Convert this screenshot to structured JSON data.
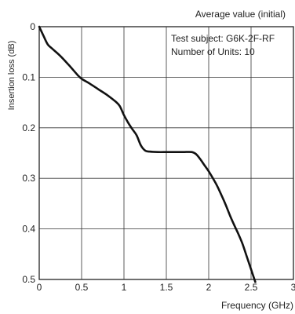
{
  "chart_data": {
    "type": "line",
    "title": "Average value (initial)",
    "xlabel": "Frequency (GHz)",
    "ylabel": "Insertion loss (dB)",
    "xlim": [
      0,
      3
    ],
    "ylim": [
      0,
      0.5
    ],
    "y_inverted": true,
    "grid": true,
    "x_ticks": [
      0,
      0.5,
      1,
      1.5,
      2,
      2.5,
      3
    ],
    "x_tick_labels": [
      "0",
      "0.5",
      "1",
      "1.5",
      "2",
      "2.5",
      "3"
    ],
    "y_ticks": [
      0,
      0.1,
      0.2,
      0.3,
      0.4,
      0.5
    ],
    "y_tick_labels": [
      "0",
      "0.1",
      "0.2",
      "0.3",
      "0.4",
      "0.5"
    ],
    "annotations": [
      "Test subject: G6K-2F-RF",
      "Number of Units: 10"
    ],
    "series": [
      {
        "x": [
          0,
          0.05,
          0.1,
          0.15,
          0.25,
          0.35,
          0.45,
          0.5,
          0.6,
          0.7,
          0.8,
          0.9,
          0.95,
          1.0,
          1.05,
          1.1,
          1.15,
          1.2,
          1.25,
          1.3,
          1.4,
          1.5,
          1.6,
          1.7,
          1.8,
          1.85,
          1.9,
          1.95,
          2.0,
          2.05,
          2.1,
          2.15,
          2.2,
          2.25,
          2.3,
          2.35,
          2.4,
          2.45,
          2.5,
          2.55
        ],
        "y": [
          0,
          0.018,
          0.035,
          0.043,
          0.058,
          0.076,
          0.095,
          0.103,
          0.113,
          0.124,
          0.135,
          0.148,
          0.157,
          0.175,
          0.19,
          0.203,
          0.215,
          0.235,
          0.245,
          0.247,
          0.248,
          0.248,
          0.248,
          0.248,
          0.248,
          0.252,
          0.262,
          0.274,
          0.286,
          0.3,
          0.315,
          0.333,
          0.352,
          0.373,
          0.392,
          0.41,
          0.43,
          0.455,
          0.48,
          0.505
        ],
        "color": "#111111"
      }
    ]
  }
}
